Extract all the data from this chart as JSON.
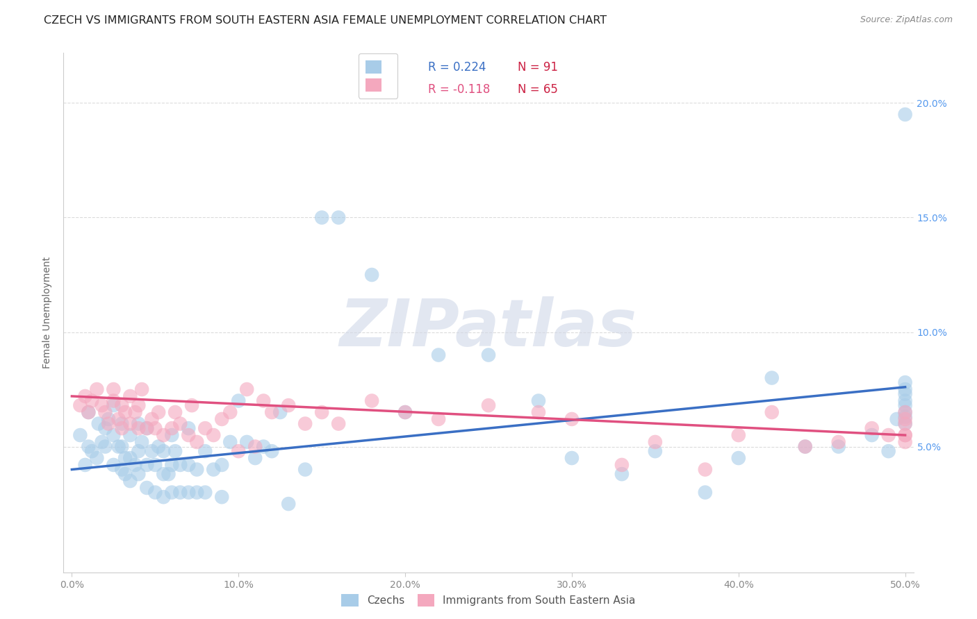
{
  "title": "CZECH VS IMMIGRANTS FROM SOUTH EASTERN ASIA FEMALE UNEMPLOYMENT CORRELATION CHART",
  "source": "Source: ZipAtlas.com",
  "xlabel": "",
  "ylabel": "Female Unemployment",
  "xlim": [
    -0.005,
    0.505
  ],
  "ylim": [
    -0.005,
    0.222
  ],
  "xticks": [
    0.0,
    0.1,
    0.2,
    0.3,
    0.4,
    0.5
  ],
  "xtick_labels": [
    "0.0%",
    "10.0%",
    "20.0%",
    "30.0%",
    "40.0%",
    "50.0%"
  ],
  "yticks": [
    0.05,
    0.1,
    0.15,
    0.2
  ],
  "ytick_labels": [
    "5.0%",
    "10.0%",
    "15.0%",
    "20.0%"
  ],
  "legend1_label": "R = 0.224",
  "legend1_n": "N = 91",
  "legend2_label": "R = -0.118",
  "legend2_n": "N = 65",
  "background_color": "#ffffff",
  "grid_color": "#d8d8d8",
  "czechs_blue": "#a8cce8",
  "sea_pink": "#f4a8be",
  "trend_blue": "#3a6fc4",
  "trend_pink": "#e05080",
  "watermark_text": "ZIPatlas",
  "watermark_color": "#d0d8e8",
  "title_fontsize": 11.5,
  "axis_label_fontsize": 10,
  "tick_fontsize": 10,
  "right_tick_color": "#5599ee",
  "bottom_tick_color": "#888888",
  "ylabel_color": "#666666",
  "source_color": "#888888",
  "legend_r_color": "#3a6fc4",
  "legend_n_color": "#cc2244",
  "legend_frame_color": "#cccccc",
  "czechs_x": [
    0.005,
    0.008,
    0.01,
    0.01,
    0.012,
    0.015,
    0.016,
    0.018,
    0.02,
    0.02,
    0.022,
    0.025,
    0.025,
    0.025,
    0.028,
    0.03,
    0.03,
    0.03,
    0.032,
    0.032,
    0.035,
    0.035,
    0.035,
    0.038,
    0.04,
    0.04,
    0.04,
    0.042,
    0.045,
    0.045,
    0.045,
    0.048,
    0.05,
    0.05,
    0.052,
    0.055,
    0.055,
    0.055,
    0.058,
    0.06,
    0.06,
    0.06,
    0.062,
    0.065,
    0.065,
    0.07,
    0.07,
    0.07,
    0.075,
    0.075,
    0.08,
    0.08,
    0.085,
    0.09,
    0.09,
    0.095,
    0.1,
    0.105,
    0.11,
    0.115,
    0.12,
    0.125,
    0.13,
    0.14,
    0.15,
    0.16,
    0.18,
    0.2,
    0.22,
    0.25,
    0.28,
    0.3,
    0.33,
    0.35,
    0.38,
    0.4,
    0.42,
    0.44,
    0.46,
    0.48,
    0.49,
    0.495,
    0.5,
    0.5,
    0.5,
    0.5,
    0.5,
    0.5,
    0.5,
    0.5,
    0.5
  ],
  "czechs_y": [
    0.055,
    0.042,
    0.065,
    0.05,
    0.048,
    0.045,
    0.06,
    0.052,
    0.05,
    0.058,
    0.062,
    0.042,
    0.055,
    0.068,
    0.05,
    0.04,
    0.05,
    0.06,
    0.038,
    0.045,
    0.035,
    0.045,
    0.055,
    0.042,
    0.038,
    0.048,
    0.06,
    0.052,
    0.032,
    0.042,
    0.058,
    0.048,
    0.03,
    0.042,
    0.05,
    0.028,
    0.038,
    0.048,
    0.038,
    0.03,
    0.042,
    0.055,
    0.048,
    0.03,
    0.042,
    0.03,
    0.042,
    0.058,
    0.03,
    0.04,
    0.03,
    0.048,
    0.04,
    0.028,
    0.042,
    0.052,
    0.07,
    0.052,
    0.045,
    0.05,
    0.048,
    0.065,
    0.025,
    0.04,
    0.15,
    0.15,
    0.125,
    0.065,
    0.09,
    0.09,
    0.07,
    0.045,
    0.038,
    0.048,
    0.03,
    0.045,
    0.08,
    0.05,
    0.05,
    0.055,
    0.048,
    0.062,
    0.06,
    0.063,
    0.065,
    0.068,
    0.07,
    0.073,
    0.075,
    0.078,
    0.195
  ],
  "sea_x": [
    0.005,
    0.008,
    0.01,
    0.012,
    0.015,
    0.018,
    0.02,
    0.022,
    0.025,
    0.025,
    0.028,
    0.03,
    0.03,
    0.032,
    0.035,
    0.035,
    0.038,
    0.04,
    0.04,
    0.042,
    0.045,
    0.048,
    0.05,
    0.052,
    0.055,
    0.06,
    0.062,
    0.065,
    0.07,
    0.072,
    0.075,
    0.08,
    0.085,
    0.09,
    0.095,
    0.1,
    0.105,
    0.11,
    0.115,
    0.12,
    0.13,
    0.14,
    0.15,
    0.16,
    0.18,
    0.2,
    0.22,
    0.25,
    0.28,
    0.3,
    0.33,
    0.35,
    0.38,
    0.4,
    0.42,
    0.44,
    0.46,
    0.48,
    0.49,
    0.5,
    0.5,
    0.5,
    0.5,
    0.5,
    0.5
  ],
  "sea_y": [
    0.068,
    0.072,
    0.065,
    0.07,
    0.075,
    0.068,
    0.065,
    0.06,
    0.07,
    0.075,
    0.062,
    0.058,
    0.068,
    0.065,
    0.06,
    0.072,
    0.065,
    0.058,
    0.068,
    0.075,
    0.058,
    0.062,
    0.058,
    0.065,
    0.055,
    0.058,
    0.065,
    0.06,
    0.055,
    0.068,
    0.052,
    0.058,
    0.055,
    0.062,
    0.065,
    0.048,
    0.075,
    0.05,
    0.07,
    0.065,
    0.068,
    0.06,
    0.065,
    0.06,
    0.07,
    0.065,
    0.062,
    0.068,
    0.065,
    0.062,
    0.042,
    0.052,
    0.04,
    0.055,
    0.065,
    0.05,
    0.052,
    0.058,
    0.055,
    0.052,
    0.055,
    0.06,
    0.062,
    0.065,
    0.055
  ],
  "czech_trend_x": [
    0.0,
    0.5
  ],
  "czech_trend_y": [
    0.04,
    0.076
  ],
  "sea_trend_x": [
    0.0,
    0.5
  ],
  "sea_trend_y": [
    0.072,
    0.055
  ]
}
